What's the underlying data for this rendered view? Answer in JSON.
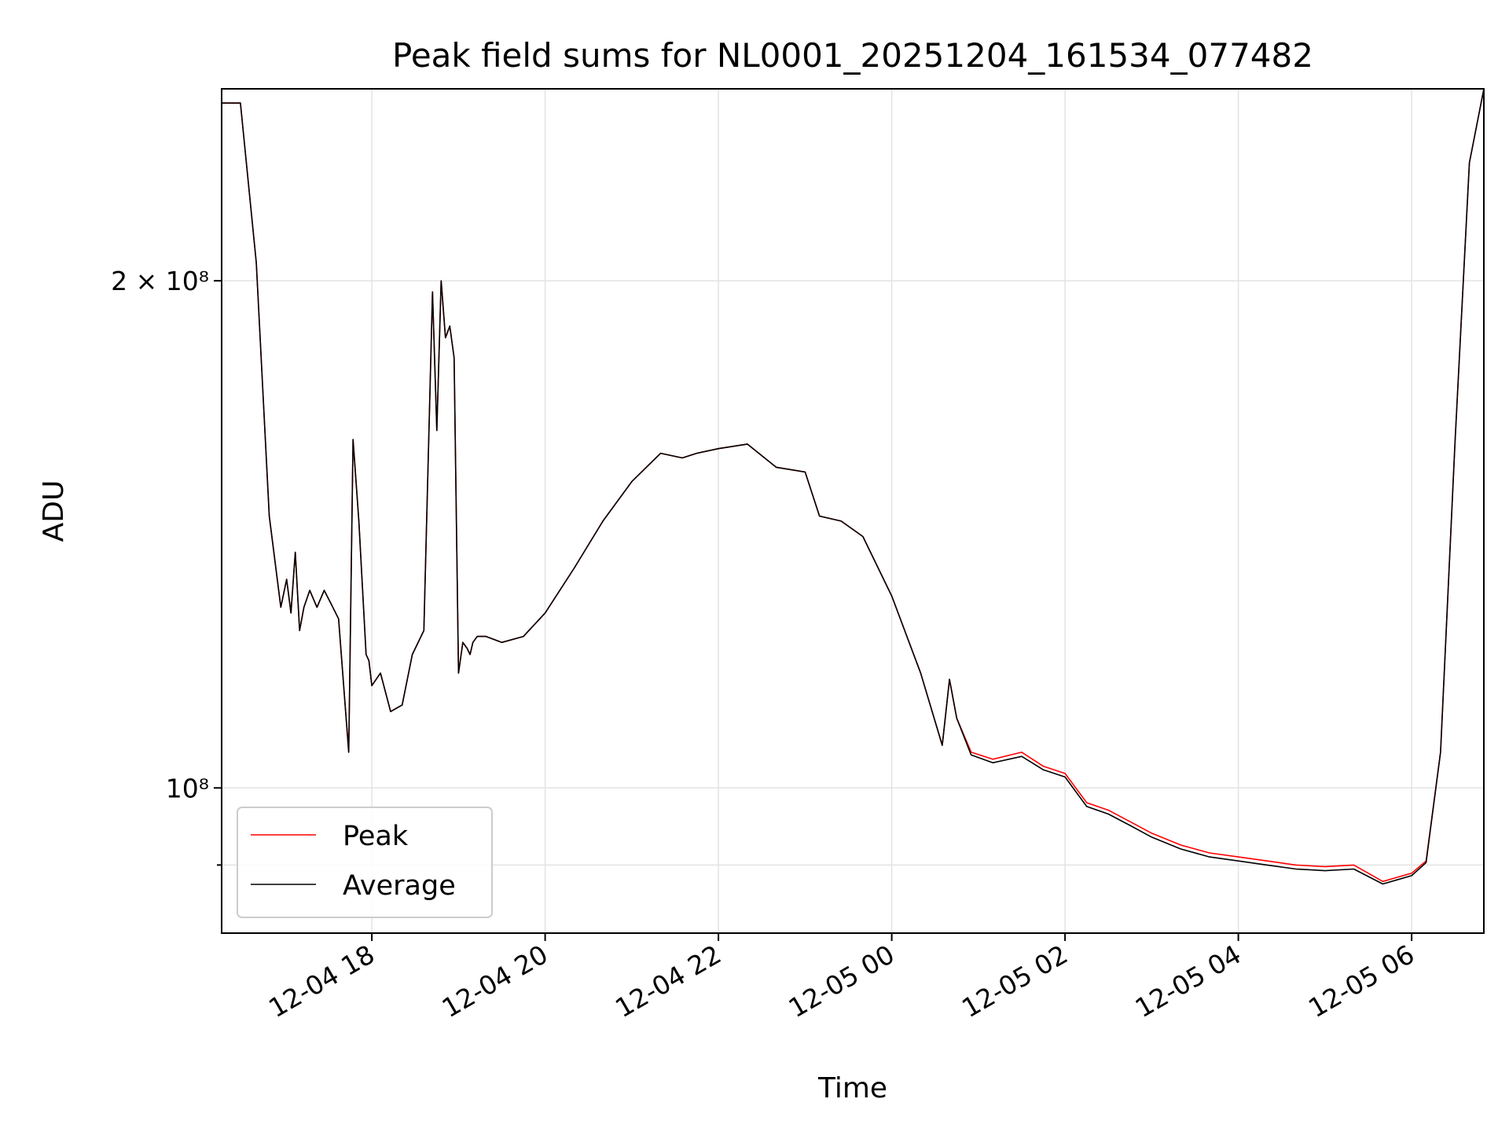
{
  "chart_data": {
    "type": "line",
    "title": "Peak field sums for NL0001_20251204_161534_077482",
    "xlabel": "Time",
    "ylabel": "ADU",
    "yscale": "log",
    "xlim": [
      "2025-12-04 16:16",
      "2025-12-05 06:50"
    ],
    "ylim": [
      82000000,
      260000000
    ],
    "x_ticks": [
      "12-04 18",
      "12-04 20",
      "12-04 22",
      "12-05 00",
      "12-05 02",
      "12-05 04",
      "12-05 06"
    ],
    "y_ticks": [
      {
        "value": 200000000,
        "label": "2 × 10⁸"
      },
      {
        "value": 100000000,
        "label": "10⁸"
      },
      {
        "value": 90000000,
        "label": ""
      }
    ],
    "grid": true,
    "legend_position": "lower-left",
    "series": [
      {
        "name": "Peak",
        "color": "#ff0000",
        "x": [
          "2025-12-04 16:16",
          "2025-12-04 16:29",
          "2025-12-04 16:40",
          "2025-12-04 16:49",
          "2025-12-04 16:57",
          "2025-12-04 17:01",
          "2025-12-04 17:04",
          "2025-12-04 17:07",
          "2025-12-04 17:10",
          "2025-12-04 17:13",
          "2025-12-04 17:17",
          "2025-12-04 17:22",
          "2025-12-04 17:27",
          "2025-12-04 17:31",
          "2025-12-04 17:37",
          "2025-12-04 17:44",
          "2025-12-04 17:47",
          "2025-12-04 17:51",
          "2025-12-04 17:56",
          "2025-12-04 17:58",
          "2025-12-04 18:00",
          "2025-12-04 18:06",
          "2025-12-04 18:13",
          "2025-12-04 18:21",
          "2025-12-04 18:28",
          "2025-12-04 18:36",
          "2025-12-04 18:42",
          "2025-12-04 18:45",
          "2025-12-04 18:48",
          "2025-12-04 18:51",
          "2025-12-04 18:54",
          "2025-12-04 18:57",
          "2025-12-04 19:00",
          "2025-12-04 19:03",
          "2025-12-04 19:06",
          "2025-12-04 19:08",
          "2025-12-04 19:10",
          "2025-12-04 19:13",
          "2025-12-04 19:19",
          "2025-12-04 19:30",
          "2025-12-04 19:45",
          "2025-12-04 20:00",
          "2025-12-04 20:20",
          "2025-12-04 20:40",
          "2025-12-04 21:00",
          "2025-12-04 21:20",
          "2025-12-04 21:35",
          "2025-12-04 21:45",
          "2025-12-04 22:00",
          "2025-12-04 22:20",
          "2025-12-04 22:40",
          "2025-12-04 23:00",
          "2025-12-04 23:10",
          "2025-12-04 23:25",
          "2025-12-04 23:40",
          "2025-12-05 00:00",
          "2025-12-05 00:20",
          "2025-12-05 00:35",
          "2025-12-05 00:40",
          "2025-12-05 00:45",
          "2025-12-05 00:55",
          "2025-12-05 01:10",
          "2025-12-05 01:30",
          "2025-12-05 01:45",
          "2025-12-05 02:00",
          "2025-12-05 02:15",
          "2025-12-05 02:30",
          "2025-12-05 02:45",
          "2025-12-05 03:00",
          "2025-12-05 03:20",
          "2025-12-05 03:40",
          "2025-12-05 04:00",
          "2025-12-05 04:20",
          "2025-12-05 04:40",
          "2025-12-05 05:00",
          "2025-12-05 05:20",
          "2025-12-05 05:30",
          "2025-12-05 05:40",
          "2025-12-05 05:50",
          "2025-12-05 06:00",
          "2025-12-05 06:10",
          "2025-12-05 06:20",
          "2025-12-05 06:30",
          "2025-12-05 06:40",
          "2025-12-05 06:50"
        ],
        "y": [
          255000000,
          255000000,
          205000000,
          145000000,
          128000000,
          133000000,
          127000000,
          138000000,
          124000000,
          128000000,
          131000000,
          128000000,
          131000000,
          129000000,
          126000000,
          105000000,
          161000000,
          144000000,
          120000000,
          119000000,
          115000000,
          117000000,
          111000000,
          112000000,
          120000000,
          124000000,
          197000000,
          163000000,
          200000000,
          185000000,
          188000000,
          180000000,
          117000000,
          122000000,
          121000000,
          120000000,
          122000000,
          123000000,
          123000000,
          122000000,
          123000000,
          127000000,
          135000000,
          144000000,
          152000000,
          158000000,
          157000000,
          158000000,
          159000000,
          160000000,
          155000000,
          154000000,
          145000000,
          144000000,
          141000000,
          130000000,
          117000000,
          106000000,
          116000000,
          110000000,
          105000000,
          104000000,
          105000000,
          103000000,
          102000000,
          98000000,
          97000000,
          95500000,
          94000000,
          92500000,
          91500000,
          91000000,
          90500000,
          90000000,
          89800000,
          90000000,
          89000000,
          88000000,
          88500000,
          89000000,
          90500000,
          105000000,
          160000000,
          235000000,
          260000000
        ]
      },
      {
        "name": "Average",
        "color": "#000000",
        "x": [
          "2025-12-04 16:16",
          "2025-12-04 16:29",
          "2025-12-04 16:40",
          "2025-12-04 16:49",
          "2025-12-04 16:57",
          "2025-12-04 17:01",
          "2025-12-04 17:04",
          "2025-12-04 17:07",
          "2025-12-04 17:10",
          "2025-12-04 17:13",
          "2025-12-04 17:17",
          "2025-12-04 17:22",
          "2025-12-04 17:27",
          "2025-12-04 17:31",
          "2025-12-04 17:37",
          "2025-12-04 17:44",
          "2025-12-04 17:47",
          "2025-12-04 17:51",
          "2025-12-04 17:56",
          "2025-12-04 17:58",
          "2025-12-04 18:00",
          "2025-12-04 18:06",
          "2025-12-04 18:13",
          "2025-12-04 18:21",
          "2025-12-04 18:28",
          "2025-12-04 18:36",
          "2025-12-04 18:42",
          "2025-12-04 18:45",
          "2025-12-04 18:48",
          "2025-12-04 18:51",
          "2025-12-04 18:54",
          "2025-12-04 18:57",
          "2025-12-04 19:00",
          "2025-12-04 19:03",
          "2025-12-04 19:06",
          "2025-12-04 19:08",
          "2025-12-04 19:10",
          "2025-12-04 19:13",
          "2025-12-04 19:19",
          "2025-12-04 19:30",
          "2025-12-04 19:45",
          "2025-12-04 20:00",
          "2025-12-04 20:20",
          "2025-12-04 20:40",
          "2025-12-04 21:00",
          "2025-12-04 21:20",
          "2025-12-04 21:35",
          "2025-12-04 21:45",
          "2025-12-04 22:00",
          "2025-12-04 22:20",
          "2025-12-04 22:40",
          "2025-12-04 23:00",
          "2025-12-04 23:10",
          "2025-12-04 23:25",
          "2025-12-04 23:40",
          "2025-12-05 00:00",
          "2025-12-05 00:20",
          "2025-12-05 00:35",
          "2025-12-05 00:40",
          "2025-12-05 00:45",
          "2025-12-05 00:55",
          "2025-12-05 01:10",
          "2025-12-05 01:30",
          "2025-12-05 01:45",
          "2025-12-05 02:00",
          "2025-12-05 02:15",
          "2025-12-05 02:30",
          "2025-12-05 02:45",
          "2025-12-05 03:00",
          "2025-12-05 03:20",
          "2025-12-05 03:40",
          "2025-12-05 04:00",
          "2025-12-05 04:20",
          "2025-12-05 04:40",
          "2025-12-05 05:00",
          "2025-12-05 05:20",
          "2025-12-05 05:30",
          "2025-12-05 05:40",
          "2025-12-05 05:50",
          "2025-12-05 06:00",
          "2025-12-05 06:10",
          "2025-12-05 06:20",
          "2025-12-05 06:30",
          "2025-12-05 06:40",
          "2025-12-05 06:50"
        ],
        "y": [
          255000000,
          255000000,
          205000000,
          145000000,
          128000000,
          133000000,
          127000000,
          138000000,
          124000000,
          128000000,
          131000000,
          128000000,
          131000000,
          129000000,
          126000000,
          105000000,
          161000000,
          144000000,
          120000000,
          119000000,
          115000000,
          117000000,
          111000000,
          112000000,
          120000000,
          124000000,
          197000000,
          163000000,
          200000000,
          185000000,
          188000000,
          180000000,
          117000000,
          122000000,
          121000000,
          120000000,
          122000000,
          123000000,
          123000000,
          122000000,
          123000000,
          127000000,
          135000000,
          144000000,
          152000000,
          158000000,
          157000000,
          158000000,
          159000000,
          160000000,
          155000000,
          154000000,
          145000000,
          144000000,
          141000000,
          130000000,
          117000000,
          106000000,
          116000000,
          110000000,
          104600000,
          103500000,
          104400000,
          102500000,
          101500000,
          97500000,
          96500000,
          95000000,
          93500000,
          92000000,
          91000000,
          90500000,
          90000000,
          89500000,
          89300000,
          89500000,
          88600000,
          87700000,
          88200000,
          88700000,
          90300000,
          105000000,
          160000000,
          235000000,
          260000000
        ]
      }
    ]
  }
}
